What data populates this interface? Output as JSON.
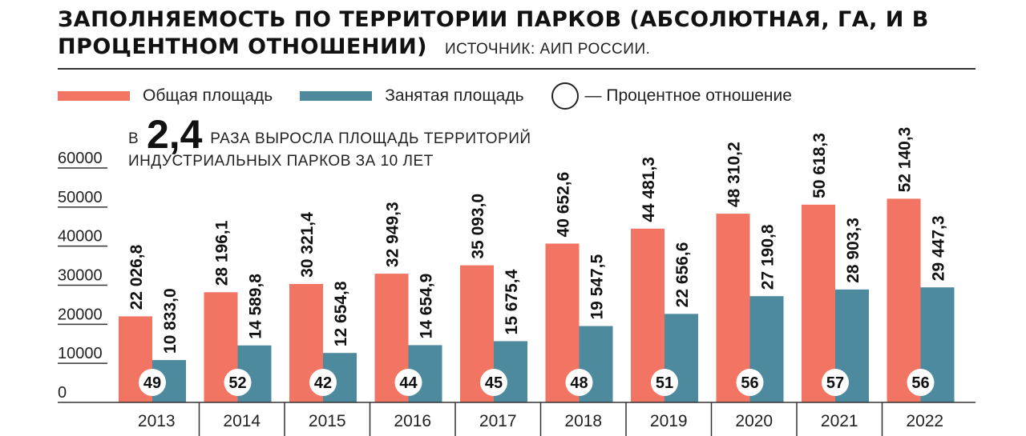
{
  "header": {
    "title": "ЗАПОЛНЯЕМОСТЬ ПО ТЕРРИТОРИИ ПАРКОВ (АБСОЛЮТНАЯ, ГА, И В ПРОЦЕНТНОМ ОТНОШЕНИИ)",
    "source": "ИСТОЧНИК: АИП РОССИИ."
  },
  "legend": {
    "total": "Общая площадь",
    "occupied": "Занятая площадь",
    "percent": "— Процентное отношение"
  },
  "note": {
    "prefix": "В",
    "big": "2,4",
    "line1": "РАЗА ВЫРОСЛА ПЛОЩАДЬ ТЕРРИТОРИЙ",
    "line2": "ИНДУСТРИАЛЬНЫХ ПАРКОВ ЗА 10 ЛЕТ"
  },
  "colors": {
    "total": "#f27462",
    "occupied": "#4e8a9e",
    "text": "#111111"
  },
  "chart_data": {
    "type": "bar",
    "categories": [
      "2013",
      "2014",
      "2015",
      "2016",
      "2017",
      "2018",
      "2019",
      "2020",
      "2021",
      "2022"
    ],
    "series": [
      {
        "name": "Общая площадь",
        "values": [
          22026.8,
          28196.1,
          30321.4,
          32949.3,
          35093.0,
          40652.6,
          44481.3,
          48310.2,
          50618.3,
          52140.3
        ],
        "labels": [
          "22 026,8",
          "28 196,1",
          "30 321,4",
          "32 949,3",
          "35 093,0",
          "40 652,6",
          "44 481,3",
          "48 310,2",
          "50 618,3",
          "52 140,3"
        ]
      },
      {
        "name": "Занятая площадь",
        "values": [
          10833.0,
          14589.8,
          12654.8,
          14654.9,
          15675.4,
          19547.5,
          22656.6,
          27190.8,
          28903.3,
          29447.3
        ],
        "labels": [
          "10 833,0",
          "14 589,8",
          "12 654,8",
          "14 654,9",
          "15 675,4",
          "19 547,5",
          "22 656,6",
          "27 190,8",
          "28 903,3",
          "29 447,3"
        ]
      }
    ],
    "percent": [
      "49",
      "52",
      "42",
      "44",
      "45",
      "48",
      "51",
      "56",
      "57",
      "56"
    ],
    "yticks": [
      "0",
      "10000",
      "20000",
      "30000",
      "40000",
      "50000",
      "60000"
    ],
    "ylim": [
      0,
      60000
    ]
  }
}
